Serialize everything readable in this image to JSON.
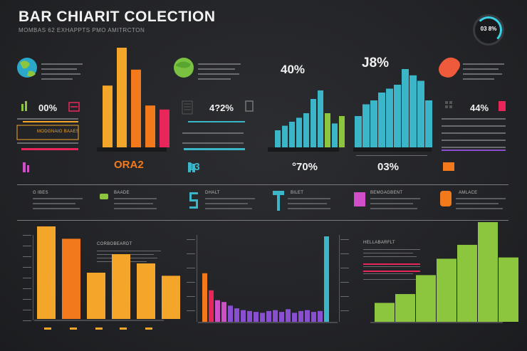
{
  "header": {
    "title": "BAR CHIARIT COLECTION",
    "subtitle": "MOMBAS 62 EXHAPPTS PMO AMITRCTON",
    "badge": "03 8%"
  },
  "top_labels": {
    "p1": "00%",
    "p2": "ORA2",
    "p3": "40%",
    "p4": "J8%",
    "p5": "44%",
    "p6": "4?2%",
    "p7": "13",
    "p8": "°70%",
    "p9": "03%"
  },
  "panel_text": {
    "box_label": "MODGNAIO BAAES",
    "mid_heading_1": "G IBES",
    "mid_heading_2": "BAADE",
    "mid_heading_3": "DHALT",
    "mid_heading_4": "BILET",
    "mid_heading_5": "BEMGAGBENT",
    "mid_heading_6": "AMLACE",
    "bottom_heading_1": "CORBOBEARDT",
    "bottom_heading_3": "HELLABARFLT"
  },
  "colors": {
    "orange": "#f4a62a",
    "orange_deep": "#f27a1c",
    "pink": "#e8265a",
    "teal": "#3ab6c8",
    "lime": "#8cc63f",
    "purple": "#8a4fd0",
    "magenta": "#d04fc8"
  },
  "chart_data": [
    {
      "type": "bar",
      "values": [
        62,
        100,
        78,
        42,
        38
      ]
    },
    {
      "type": "bar",
      "values": [
        30,
        38,
        45,
        52,
        60,
        85,
        100,
        60,
        42,
        55
      ]
    },
    {
      "type": "bar",
      "values": [
        40,
        55,
        60,
        70,
        75,
        80,
        100,
        92,
        85,
        60
      ]
    },
    {
      "type": "bar",
      "values": [
        60,
        52,
        30,
        42,
        36,
        28
      ]
    },
    {
      "type": "bar",
      "values": [
        54,
        35,
        24,
        22,
        18,
        15,
        13,
        12,
        11,
        10,
        12,
        13,
        11,
        14,
        10,
        12,
        13,
        11,
        12,
        95
      ]
    },
    {
      "type": "bar",
      "values": [
        15,
        22,
        37,
        50,
        61,
        79,
        51
      ]
    }
  ]
}
